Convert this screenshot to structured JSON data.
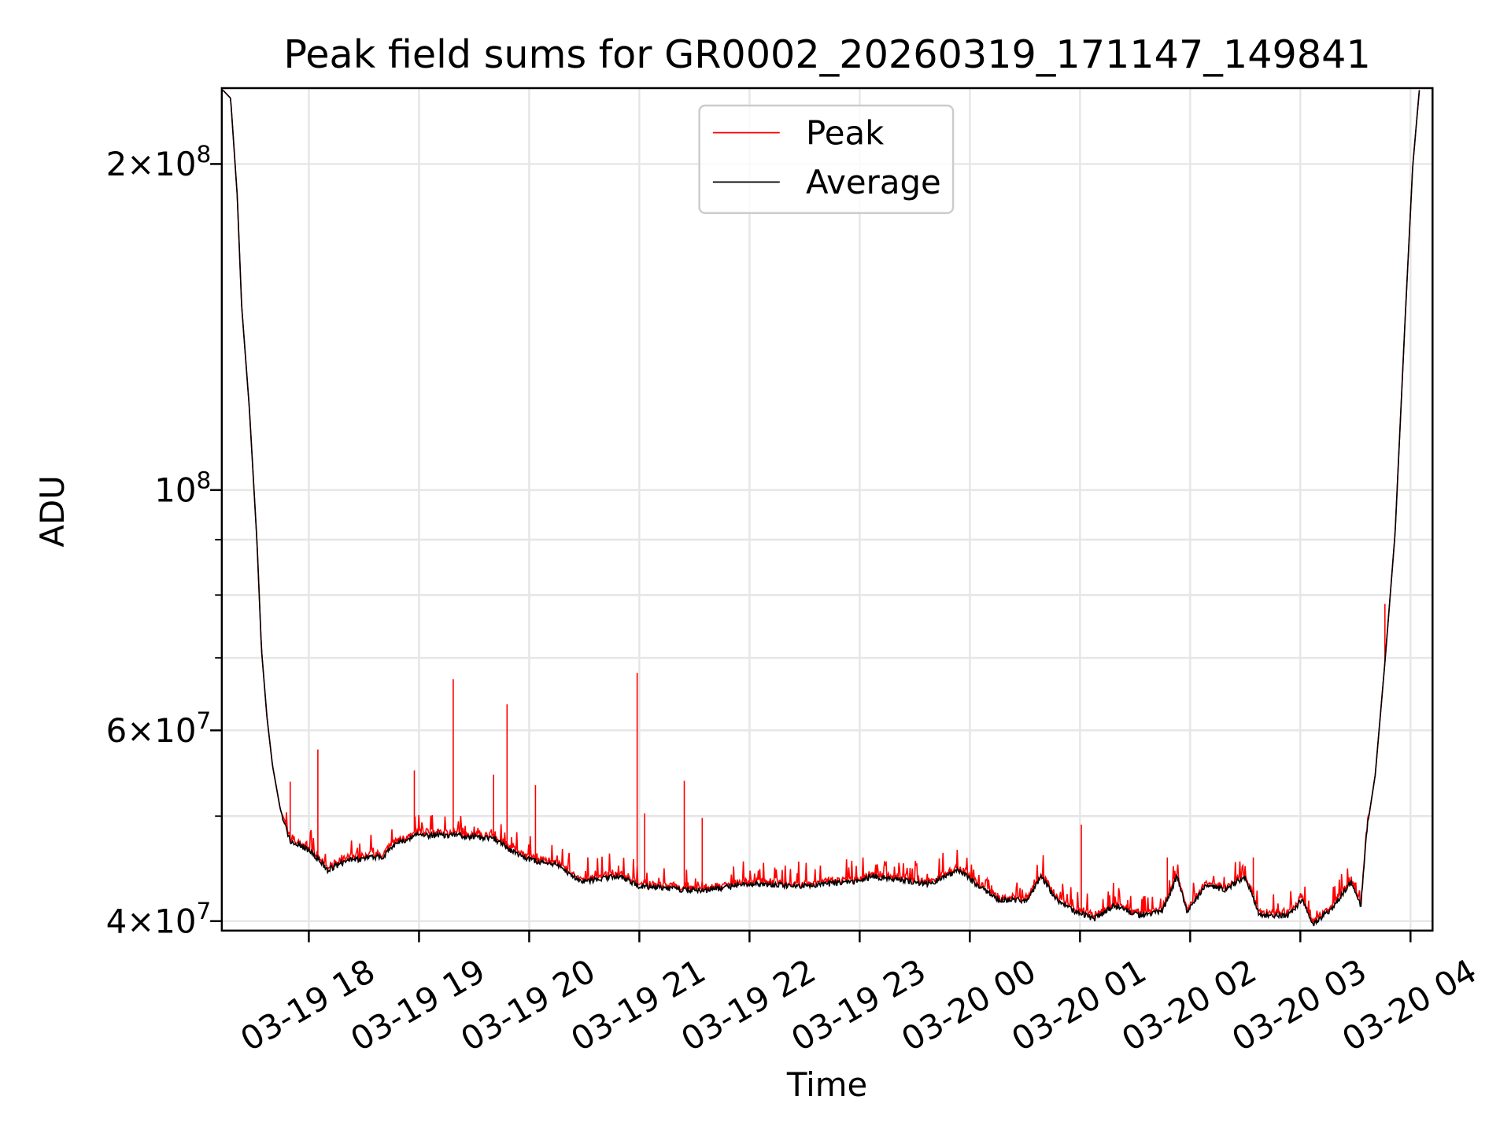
{
  "chart_data": {
    "type": "line",
    "title": "Peak field sums for GR0002_20260319_171147_149841",
    "xlabel": "Time",
    "ylabel": "ADU",
    "yscale": "log",
    "ylim": [
      39200000,
      235000000
    ],
    "x_units": "hours since 03-19 18:00",
    "xlim": [
      -0.79,
      10.2
    ],
    "grid": true,
    "legend": {
      "placement": "top-center",
      "entries": [
        "Peak",
        "Average"
      ]
    },
    "colors": {
      "Peak": "#ff0000",
      "Average": "#000000",
      "grid": "#e6e6e6"
    },
    "x_ticks": [
      {
        "value": 0,
        "label": "03-19 18"
      },
      {
        "value": 1,
        "label": "03-19 19"
      },
      {
        "value": 2,
        "label": "03-19 20"
      },
      {
        "value": 3,
        "label": "03-19 21"
      },
      {
        "value": 4,
        "label": "03-19 22"
      },
      {
        "value": 5,
        "label": "03-19 23"
      },
      {
        "value": 6,
        "label": "03-20 00"
      },
      {
        "value": 7,
        "label": "03-20 01"
      },
      {
        "value": 8,
        "label": "03-20 02"
      },
      {
        "value": 9,
        "label": "03-20 03"
      },
      {
        "value": 10,
        "label": "03-20 04"
      }
    ],
    "y_ticks": [
      {
        "value": 40000000,
        "mantissa": "4",
        "times": "×",
        "base": "10",
        "exponent": "7"
      },
      {
        "value": 60000000,
        "mantissa": "6",
        "times": "×",
        "base": "10",
        "exponent": "7"
      },
      {
        "value": 100000000,
        "mantissa": "",
        "times": "",
        "base": "10",
        "exponent": "8"
      },
      {
        "value": 200000000,
        "mantissa": "2",
        "times": "×",
        "base": "10",
        "exponent": "8"
      }
    ],
    "y_minor_ticks": [
      50000000,
      70000000,
      80000000,
      90000000
    ],
    "series": [
      {
        "name": "Average",
        "points": [
          [
            -0.78,
            234000000.0
          ],
          [
            -0.71,
            230000000.0
          ],
          [
            -0.65,
            187000000.0
          ],
          [
            -0.61,
            148000000.0
          ],
          [
            -0.54,
            119000000.0
          ],
          [
            -0.47,
            89300000.0
          ],
          [
            -0.43,
            71300000.0
          ],
          [
            -0.38,
            61700000.0
          ],
          [
            -0.33,
            55700000.0
          ],
          [
            -0.26,
            50800000.0
          ],
          [
            -0.17,
            47400000.0
          ],
          [
            0.01,
            46500000.0
          ],
          [
            0.17,
            44600000.0
          ],
          [
            0.36,
            45500000.0
          ],
          [
            0.67,
            45900000.0
          ],
          [
            0.8,
            47200000.0
          ],
          [
            0.98,
            48000000.0
          ],
          [
            1.33,
            48000000.0
          ],
          [
            1.68,
            47700000.0
          ],
          [
            1.86,
            46300000.0
          ],
          [
            2.03,
            45500000.0
          ],
          [
            2.25,
            45100000.0
          ],
          [
            2.47,
            43500000.0
          ],
          [
            2.82,
            44000000.0
          ],
          [
            3.0,
            43100000.0
          ],
          [
            3.35,
            42800000.0
          ],
          [
            3.61,
            42700000.0
          ],
          [
            3.97,
            43300000.0
          ],
          [
            4.49,
            43100000.0
          ],
          [
            4.98,
            43500000.0
          ],
          [
            5.11,
            44000000.0
          ],
          [
            5.64,
            43300000.0
          ],
          [
            5.9,
            44600000.0
          ],
          [
            6.03,
            43500000.0
          ],
          [
            6.25,
            41900000.0
          ],
          [
            6.52,
            41800000.0
          ],
          [
            6.65,
            44000000.0
          ],
          [
            6.78,
            41900000.0
          ],
          [
            6.96,
            40800000.0
          ],
          [
            7.13,
            40200000.0
          ],
          [
            7.31,
            41300000.0
          ],
          [
            7.53,
            40500000.0
          ],
          [
            7.75,
            40900000.0
          ],
          [
            7.88,
            44000000.0
          ],
          [
            7.97,
            40900000.0
          ],
          [
            8.15,
            43100000.0
          ],
          [
            8.32,
            42800000.0
          ],
          [
            8.5,
            44000000.0
          ],
          [
            8.63,
            40500000.0
          ],
          [
            8.89,
            40500000.0
          ],
          [
            9.02,
            41900000.0
          ],
          [
            9.11,
            39700000.0
          ],
          [
            9.29,
            41100000.0
          ],
          [
            9.46,
            43500000.0
          ],
          [
            9.55,
            41300000.0
          ],
          [
            9.6,
            48300000.0
          ],
          [
            9.68,
            54600000.0
          ],
          [
            9.77,
            69800000.0
          ],
          [
            9.86,
            91200000.0
          ],
          [
            9.95,
            143000000.0
          ],
          [
            10.02,
            199000000.0
          ],
          [
            10.08,
            234000000.0
          ]
        ]
      },
      {
        "name": "Peak",
        "follows": "Average",
        "spikes": [
          [
            -0.17,
            53800000.0
          ],
          [
            0.08,
            57600000.0
          ],
          [
            0.96,
            55100000.0
          ],
          [
            1.31,
            66900000.0
          ],
          [
            1.68,
            54600000.0
          ],
          [
            1.8,
            63400000.0
          ],
          [
            2.06,
            53400000.0
          ],
          [
            2.98,
            67800000.0
          ],
          [
            3.05,
            50300000.0
          ],
          [
            3.41,
            53900000.0
          ],
          [
            3.57,
            49800000.0
          ],
          [
            7.01,
            49100000.0
          ],
          [
            7.79,
            45800000.0
          ],
          [
            8.57,
            45800000.0
          ],
          [
            9.77,
            78500000.0
          ]
        ]
      }
    ]
  }
}
